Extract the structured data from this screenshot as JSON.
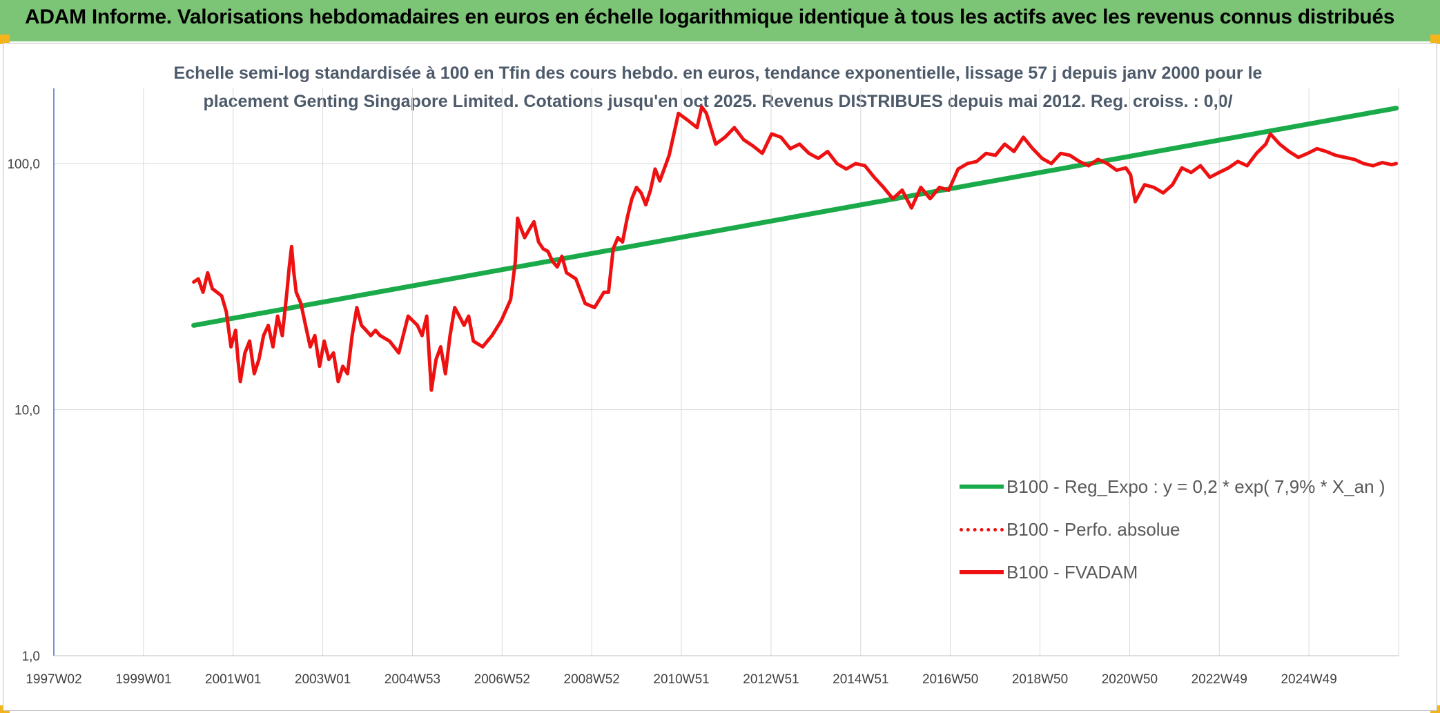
{
  "header": {
    "title": "ADAM Informe. Valorisations hebdomadaires en euros en échelle logarithmique identique à tous les actifs avec les revenus connus distribués"
  },
  "colors": {
    "banner": "#7cc576",
    "corner": "#f3b51b",
    "regression": "#1aaa4a",
    "fvadam": "#ee1111"
  },
  "chart_data": {
    "type": "line",
    "title_line1": "Echelle semi-log standardisée à 100 en Tfin des cours hebdo. en euros, tendance exponentielle, lissage 57 j depuis janv 2000 pour le",
    "title_line2": "placement Genting Singapore Limited. Cotations jusqu'en oct 2025. Revenus DISTRIBUES depuis mai 2012. Reg. croiss. : 0,0/",
    "y_scale": "log",
    "ylim": [
      1,
      200
    ],
    "y_ticks": [
      "1,0",
      "10,0",
      "100,0"
    ],
    "x_ticks": [
      "1997W02",
      "1999W01",
      "2001W01",
      "2003W01",
      "2004W53",
      "2006W52",
      "2008W52",
      "2010W51",
      "2012W51",
      "2014W51",
      "2016W50",
      "2018W50",
      "2020W50",
      "2022W49",
      "2024W49"
    ],
    "xlim": [
      1997.0,
      2025.85
    ],
    "grid": "vertical and horizontal",
    "legend_position": "bottom-right",
    "series": [
      {
        "name": "B100 - Reg_Expo : y = 0,2 * exp( 7,9% *  X_an )",
        "style": "solid-green",
        "x": [
          2000.0,
          2025.8
        ],
        "y": [
          22.0,
          168.0
        ]
      },
      {
        "name": "B100 - Perfo. absolue",
        "style": "dotted-red",
        "x": [],
        "y": []
      },
      {
        "name": "B100 - FVADAM",
        "style": "solid-red",
        "x": [
          2000.0,
          2000.1,
          2000.2,
          2000.3,
          2000.4,
          2000.5,
          2000.6,
          2000.7,
          2000.8,
          2000.9,
          2000.95,
          2001.0,
          2001.1,
          2001.2,
          2001.3,
          2001.4,
          2001.5,
          2001.6,
          2001.7,
          2001.8,
          2001.9,
          2002.0,
          2002.05,
          2002.1,
          2002.15,
          2002.2,
          2002.3,
          2002.4,
          2002.5,
          2002.6,
          2002.7,
          2002.8,
          2002.9,
          2003.0,
          2003.1,
          2003.2,
          2003.3,
          2003.4,
          2003.5,
          2003.6,
          2003.7,
          2003.8,
          2003.9,
          2004.0,
          2004.2,
          2004.4,
          2004.6,
          2004.8,
          2004.9,
          2005.0,
          2005.05,
          2005.1,
          2005.2,
          2005.3,
          2005.4,
          2005.5,
          2005.6,
          2005.7,
          2005.8,
          2005.9,
          2006.0,
          2006.2,
          2006.4,
          2006.6,
          2006.8,
          2006.9,
          2006.95,
          2007.0,
          2007.1,
          2007.2,
          2007.3,
          2007.4,
          2007.5,
          2007.6,
          2007.7,
          2007.8,
          2007.9,
          2008.0,
          2008.2,
          2008.4,
          2008.6,
          2008.8,
          2008.9,
          2009.0,
          2009.1,
          2009.2,
          2009.3,
          2009.4,
          2009.5,
          2009.6,
          2009.7,
          2009.8,
          2009.9,
          2010.0,
          2010.2,
          2010.4,
          2010.6,
          2010.8,
          2010.9,
          2011.0,
          2011.2,
          2011.4,
          2011.6,
          2011.8,
          2012.0,
          2012.2,
          2012.4,
          2012.6,
          2012.8,
          2013.0,
          2013.2,
          2013.4,
          2013.6,
          2013.8,
          2014.0,
          2014.2,
          2014.4,
          2014.6,
          2014.8,
          2015.0,
          2015.2,
          2015.4,
          2015.6,
          2015.8,
          2016.0,
          2016.2,
          2016.4,
          2016.6,
          2016.8,
          2017.0,
          2017.2,
          2017.4,
          2017.6,
          2017.8,
          2018.0,
          2018.2,
          2018.4,
          2018.6,
          2018.8,
          2019.0,
          2019.2,
          2019.4,
          2019.6,
          2019.8,
          2020.0,
          2020.1,
          2020.2,
          2020.4,
          2020.6,
          2020.8,
          2021.0,
          2021.2,
          2021.4,
          2021.6,
          2021.8,
          2022.0,
          2022.2,
          2022.4,
          2022.6,
          2022.8,
          2023.0,
          2023.1,
          2023.3,
          2023.5,
          2023.7,
          2023.9,
          2024.1,
          2024.3,
          2024.5,
          2024.7,
          2024.9,
          2025.1,
          2025.3,
          2025.5,
          2025.7,
          2025.8
        ],
        "y": [
          33,
          34,
          30,
          36,
          31,
          30,
          29,
          25,
          18,
          21,
          16,
          13,
          17,
          19,
          14,
          16,
          20,
          22,
          18,
          24,
          20,
          30,
          38,
          46,
          36,
          30,
          27,
          22,
          18,
          20,
          15,
          19,
          16,
          17,
          13,
          15,
          14,
          20,
          26,
          22,
          21,
          20,
          21,
          20,
          19,
          17,
          24,
          22,
          20,
          24,
          17,
          12,
          16,
          18,
          14,
          20,
          26,
          24,
          22,
          24,
          19,
          18,
          20,
          23,
          28,
          40,
          60,
          56,
          50,
          54,
          58,
          48,
          45,
          44,
          40,
          38,
          42,
          36,
          34,
          27,
          26,
          30,
          30,
          45,
          50,
          48,
          60,
          72,
          80,
          76,
          68,
          78,
          95,
          85,
          108,
          160,
          150,
          140,
          170,
          160,
          120,
          128,
          140,
          125,
          118,
          110,
          132,
          128,
          115,
          120,
          110,
          105,
          112,
          100,
          95,
          100,
          98,
          88,
          80,
          72,
          78,
          66,
          80,
          72,
          80,
          78,
          95,
          100,
          102,
          110,
          108,
          120,
          112,
          128,
          115,
          105,
          100,
          110,
          108,
          102,
          98,
          104,
          100,
          94,
          96,
          90,
          70,
          82,
          80,
          76,
          82,
          96,
          92,
          98,
          88,
          92,
          96,
          102,
          98,
          110,
          120,
          132,
          120,
          112,
          106,
          110,
          115,
          112,
          108,
          106,
          104,
          100,
          98,
          101,
          99,
          100
        ]
      }
    ]
  },
  "legend": {
    "items": [
      "B100 - Reg_Expo : y = 0,2 * exp( 7,9% *  X_an )",
      "B100 - Perfo. absolue",
      "B100 - FVADAM"
    ]
  }
}
